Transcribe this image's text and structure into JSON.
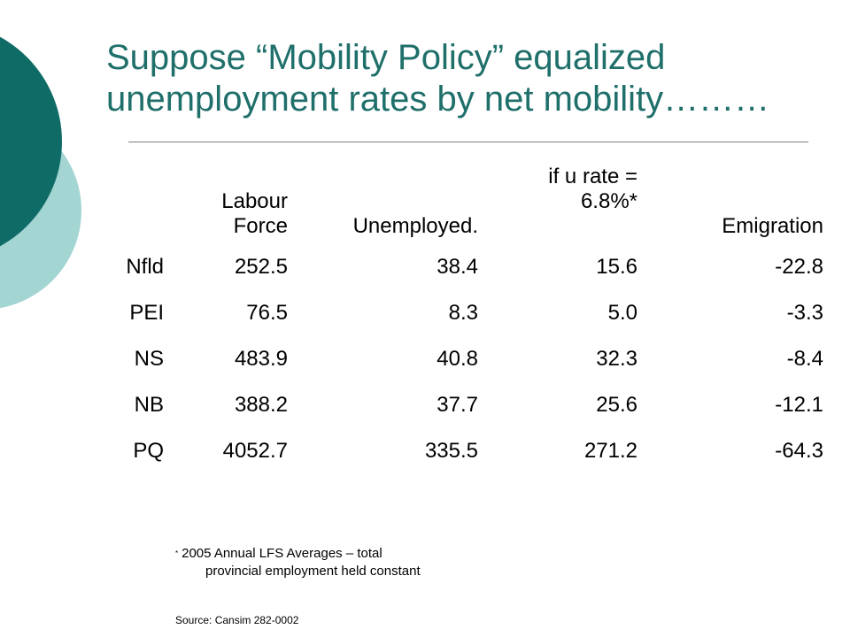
{
  "slide": {
    "title": "Suppose “Mobility Policy” equalized unemployment rates by net mobility………",
    "colors": {
      "title": "#1f6f6a",
      "circle_dark": "#0f6b66",
      "circle_light": "#a3d5d3"
    }
  },
  "table": {
    "headers": {
      "region": "",
      "labour_force": [
        "Labour",
        "Force"
      ],
      "unemployed": "Unemployed.",
      "if_rate": [
        "if u rate =",
        "6.8%*"
      ],
      "emigration": "Emigration"
    },
    "rows": [
      {
        "region": "Nfld",
        "labour_force": "252.5",
        "unemployed": "38.4",
        "if_rate": "15.6",
        "emigration": "-22.8"
      },
      {
        "region": "PEI",
        "labour_force": "76.5",
        "unemployed": "8.3",
        "if_rate": "5.0",
        "emigration": "-3.3"
      },
      {
        "region": "NS",
        "labour_force": "483.9",
        "unemployed": "40.8",
        "if_rate": "32.3",
        "emigration": "-8.4"
      },
      {
        "region": "NB",
        "labour_force": "388.2",
        "unemployed": "37.7",
        "if_rate": "25.6",
        "emigration": "-12.1"
      },
      {
        "region": "PQ",
        "labour_force": "4052.7",
        "unemployed": "335.5",
        "if_rate": "271.2",
        "emigration": "-64.3"
      }
    ]
  },
  "footnote": {
    "asterisk": "*",
    "line1": "2005 Annual LFS Averages – total",
    "line2": "provincial employment held constant"
  },
  "source": "Source: Cansim 282-0002"
}
